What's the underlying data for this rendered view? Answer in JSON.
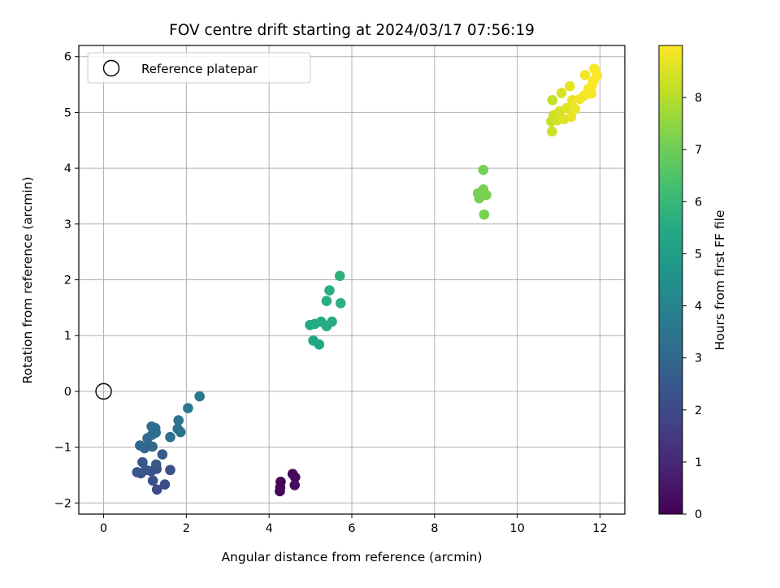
{
  "chart_data": {
    "type": "scatter",
    "title": "FOV centre drift starting at 2024/03/17 07:56:19",
    "xlabel": "Angular distance from reference (arcmin)",
    "ylabel": "Rotation from reference (arcmin)",
    "xlim": [
      -0.6,
      12.6
    ],
    "ylim": [
      -2.2,
      6.2
    ],
    "xticks": [
      0,
      2,
      4,
      6,
      8,
      10,
      12
    ],
    "yticks": [
      -2,
      -1,
      0,
      1,
      2,
      3,
      4,
      5,
      6
    ],
    "xtick_labels": [
      "0",
      "2",
      "4",
      "6",
      "8",
      "10",
      "12"
    ],
    "ytick_labels": [
      "−2",
      "−1",
      "0",
      "1",
      "2",
      "3",
      "4",
      "5",
      "6"
    ],
    "grid": true,
    "legend": {
      "location": "top-left",
      "entries": [
        "Reference platepar"
      ]
    },
    "reference_point": {
      "x": 0,
      "y": 0
    },
    "colorbar": {
      "label": "Hours from first FF file",
      "range": [
        0,
        9
      ],
      "ticks": [
        0,
        1,
        2,
        3,
        4,
        5,
        6,
        7,
        8
      ],
      "tick_labels": [
        "0",
        "1",
        "2",
        "3",
        "4",
        "5",
        "6",
        "7",
        "8"
      ],
      "colormap": "viridis"
    },
    "points": [
      {
        "x": 4.28,
        "y": -1.62,
        "hours": 0.1
      },
      {
        "x": 4.27,
        "y": -1.72,
        "hours": 0.1
      },
      {
        "x": 4.26,
        "y": -1.79,
        "hours": 0.15
      },
      {
        "x": 4.57,
        "y": -1.48,
        "hours": 0.2
      },
      {
        "x": 4.63,
        "y": -1.54,
        "hours": 0.25
      },
      {
        "x": 4.62,
        "y": -1.68,
        "hours": 0.3
      },
      {
        "x": 1.29,
        "y": -1.76,
        "hours": 2.0
      },
      {
        "x": 1.48,
        "y": -1.67,
        "hours": 2.05
      },
      {
        "x": 1.19,
        "y": -1.6,
        "hours": 2.1
      },
      {
        "x": 1.61,
        "y": -1.41,
        "hours": 2.15
      },
      {
        "x": 1.28,
        "y": -1.39,
        "hours": 2.2
      },
      {
        "x": 1.15,
        "y": -1.43,
        "hours": 2.25
      },
      {
        "x": 1.02,
        "y": -1.41,
        "hours": 2.3
      },
      {
        "x": 0.81,
        "y": -1.45,
        "hours": 2.35
      },
      {
        "x": 0.9,
        "y": -1.47,
        "hours": 2.4
      },
      {
        "x": 0.94,
        "y": -1.27,
        "hours": 2.45
      },
      {
        "x": 1.27,
        "y": -1.31,
        "hours": 2.5
      },
      {
        "x": 1.42,
        "y": -1.13,
        "hours": 2.6
      },
      {
        "x": 0.88,
        "y": -0.97,
        "hours": 3.0
      },
      {
        "x": 0.99,
        "y": -1.02,
        "hours": 3.0
      },
      {
        "x": 1.09,
        "y": -0.97,
        "hours": 3.05
      },
      {
        "x": 1.18,
        "y": -0.99,
        "hours": 3.05
      },
      {
        "x": 1.06,
        "y": -0.84,
        "hours": 3.1
      },
      {
        "x": 1.17,
        "y": -0.78,
        "hours": 3.15
      },
      {
        "x": 1.26,
        "y": -0.74,
        "hours": 3.2
      },
      {
        "x": 1.16,
        "y": -0.63,
        "hours": 3.2
      },
      {
        "x": 1.25,
        "y": -0.66,
        "hours": 3.25
      },
      {
        "x": 1.61,
        "y": -0.82,
        "hours": 3.3
      },
      {
        "x": 1.79,
        "y": -0.67,
        "hours": 3.35
      },
      {
        "x": 1.86,
        "y": -0.73,
        "hours": 3.4
      },
      {
        "x": 1.81,
        "y": -0.52,
        "hours": 3.45
      },
      {
        "x": 2.04,
        "y": -0.3,
        "hours": 3.5
      },
      {
        "x": 2.32,
        "y": -0.09,
        "hours": 3.55
      },
      {
        "x": 5.21,
        "y": 0.84,
        "hours": 5.3
      },
      {
        "x": 5.07,
        "y": 0.91,
        "hours": 5.35
      },
      {
        "x": 4.99,
        "y": 1.19,
        "hours": 5.4
      },
      {
        "x": 5.11,
        "y": 1.21,
        "hours": 5.45
      },
      {
        "x": 5.26,
        "y": 1.25,
        "hours": 5.5
      },
      {
        "x": 5.39,
        "y": 1.17,
        "hours": 5.5
      },
      {
        "x": 5.52,
        "y": 1.25,
        "hours": 5.55
      },
      {
        "x": 5.39,
        "y": 1.62,
        "hours": 5.6
      },
      {
        "x": 5.46,
        "y": 1.81,
        "hours": 5.65
      },
      {
        "x": 5.73,
        "y": 1.58,
        "hours": 5.7
      },
      {
        "x": 5.71,
        "y": 2.07,
        "hours": 5.75
      },
      {
        "x": 9.18,
        "y": 3.97,
        "hours": 7.1
      },
      {
        "x": 9.05,
        "y": 3.55,
        "hours": 7.1
      },
      {
        "x": 9.08,
        "y": 3.46,
        "hours": 7.15
      },
      {
        "x": 9.18,
        "y": 3.62,
        "hours": 7.15
      },
      {
        "x": 9.25,
        "y": 3.52,
        "hours": 7.2
      },
      {
        "x": 9.2,
        "y": 3.17,
        "hours": 7.2
      },
      {
        "x": 10.85,
        "y": 5.22,
        "hours": 8.2
      },
      {
        "x": 10.82,
        "y": 4.84,
        "hours": 8.25
      },
      {
        "x": 10.84,
        "y": 4.66,
        "hours": 8.3
      },
      {
        "x": 10.88,
        "y": 4.95,
        "hours": 8.35
      },
      {
        "x": 10.97,
        "y": 4.86,
        "hours": 8.4
      },
      {
        "x": 11.02,
        "y": 5.02,
        "hours": 8.45
      },
      {
        "x": 11.07,
        "y": 5.35,
        "hours": 8.5
      },
      {
        "x": 11.13,
        "y": 4.88,
        "hours": 8.55
      },
      {
        "x": 11.2,
        "y": 5.08,
        "hours": 8.6
      },
      {
        "x": 11.27,
        "y": 5.47,
        "hours": 8.65
      },
      {
        "x": 11.3,
        "y": 4.92,
        "hours": 8.7
      },
      {
        "x": 11.33,
        "y": 5.22,
        "hours": 8.7
      },
      {
        "x": 11.4,
        "y": 5.06,
        "hours": 8.75
      },
      {
        "x": 11.51,
        "y": 5.24,
        "hours": 8.8
      },
      {
        "x": 11.62,
        "y": 5.3,
        "hours": 8.85
      },
      {
        "x": 11.64,
        "y": 5.67,
        "hours": 8.85
      },
      {
        "x": 11.72,
        "y": 5.42,
        "hours": 8.9
      },
      {
        "x": 11.79,
        "y": 5.34,
        "hours": 8.9
      },
      {
        "x": 11.84,
        "y": 5.56,
        "hours": 8.95
      },
      {
        "x": 11.86,
        "y": 5.78,
        "hours": 8.95
      },
      {
        "x": 11.93,
        "y": 5.66,
        "hours": 8.97
      },
      {
        "x": 11.8,
        "y": 5.48,
        "hours": 8.97
      }
    ]
  }
}
